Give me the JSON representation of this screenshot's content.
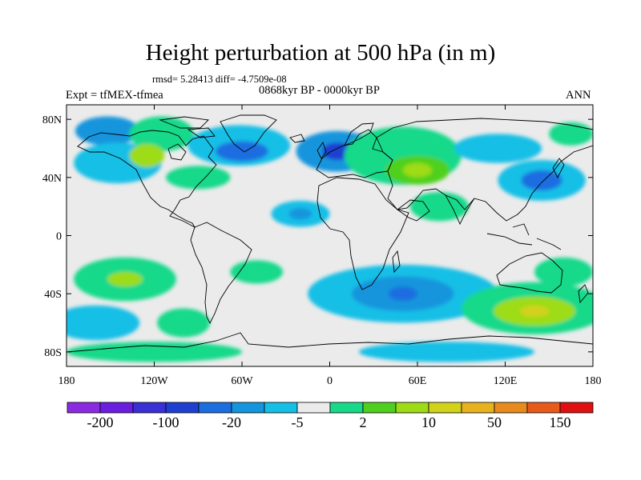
{
  "header": {
    "title": "Height perturbation at 500 hPa (in m)",
    "stats": "rmsd= 5.28413 diff= -4.7509e-08",
    "experiment": "Expt = tfMEX-tfmea",
    "period": "0868kyr BP - 0000kyr BP",
    "season": "ANN"
  },
  "axes": {
    "lat_labels": [
      {
        "lat": 80,
        "label": "80N"
      },
      {
        "lat": 40,
        "label": "40N"
      },
      {
        "lat": 0,
        "label": "0"
      },
      {
        "lat": -40,
        "label": "40S"
      },
      {
        "lat": -80,
        "label": "80S"
      }
    ],
    "lon_labels": [
      {
        "lon": -180,
        "label": "180"
      },
      {
        "lon": -120,
        "label": "120W"
      },
      {
        "lon": -60,
        "label": "60W"
      },
      {
        "lon": 0,
        "label": "0"
      },
      {
        "lon": 60,
        "label": "60E"
      },
      {
        "lon": 120,
        "label": "120E"
      },
      {
        "lon": 180,
        "label": "180"
      }
    ],
    "lon_range": [
      -180,
      180
    ],
    "lat_range": [
      -90,
      90
    ]
  },
  "colorbar": {
    "colors": [
      "#8a2be2",
      "#6a1fe0",
      "#3b2fd6",
      "#1e40d0",
      "#1a6ee0",
      "#1595dd",
      "#16bfe6",
      "#ebebeb",
      "#17d98a",
      "#4fd01e",
      "#9ddc14",
      "#d2d21a",
      "#e8b21e",
      "#e88a1e",
      "#e85a1a",
      "#e01010"
    ],
    "labels": [
      {
        "after_box": 1,
        "text": "-200"
      },
      {
        "after_box": 3,
        "text": "-100"
      },
      {
        "after_box": 5,
        "text": "-20"
      },
      {
        "after_box": 7,
        "text": "-5"
      },
      {
        "after_box": 9,
        "text": "2"
      },
      {
        "after_box": 11,
        "text": "10"
      },
      {
        "after_box": 13,
        "text": "50"
      },
      {
        "after_box": 15,
        "text": "150"
      }
    ]
  },
  "colors": {
    "neutral": "#ebebeb",
    "light_green": "#17d98a",
    "green": "#4fd01e",
    "yellow_green": "#9ddc14",
    "yellow": "#d2d21a",
    "cyan": "#16bfe6",
    "light_blue": "#1595dd",
    "blue": "#1a6ee0",
    "dark_blue": "#1e40d0"
  },
  "anomalies": [
    {
      "lon": -152,
      "lat": 72,
      "rlon": 22,
      "rlat": 10,
      "level": "light_blue"
    },
    {
      "lon": -145,
      "lat": 50,
      "rlon": 30,
      "rlat": 14,
      "level": "cyan"
    },
    {
      "lon": -115,
      "lat": 70,
      "rlon": 22,
      "rlat": 12,
      "level": "light_green"
    },
    {
      "lon": -125,
      "lat": 55,
      "rlon": 12,
      "rlat": 8,
      "level": "yellow_green"
    },
    {
      "lon": -90,
      "lat": 40,
      "rlon": 22,
      "rlat": 8,
      "level": "light_green"
    },
    {
      "lon": -62,
      "lat": 62,
      "rlon": 35,
      "rlat": 14,
      "level": "cyan"
    },
    {
      "lon": -60,
      "lat": 58,
      "rlon": 18,
      "rlat": 7,
      "level": "blue"
    },
    {
      "lon": -20,
      "lat": 15,
      "rlon": 20,
      "rlat": 9,
      "level": "cyan"
    },
    {
      "lon": -20,
      "lat": 15,
      "rlon": 8,
      "rlat": 4,
      "level": "light_blue"
    },
    {
      "lon": 5,
      "lat": 58,
      "rlon": 28,
      "rlat": 14,
      "level": "light_blue"
    },
    {
      "lon": 5,
      "lat": 58,
      "rlon": 10,
      "rlat": 6,
      "level": "dark_blue"
    },
    {
      "lon": 50,
      "lat": 55,
      "rlon": 40,
      "rlat": 20,
      "level": "light_green"
    },
    {
      "lon": 60,
      "lat": 45,
      "rlon": 22,
      "rlat": 10,
      "level": "green"
    },
    {
      "lon": 60,
      "lat": 45,
      "rlon": 10,
      "rlat": 5,
      "level": "yellow_green"
    },
    {
      "lon": 75,
      "lat": 20,
      "rlon": 20,
      "rlat": 10,
      "level": "light_green"
    },
    {
      "lon": 115,
      "lat": 60,
      "rlon": 30,
      "rlat": 10,
      "level": "cyan"
    },
    {
      "lon": 145,
      "lat": 38,
      "rlon": 30,
      "rlat": 14,
      "level": "cyan"
    },
    {
      "lon": 145,
      "lat": 38,
      "rlon": 14,
      "rlat": 7,
      "level": "blue"
    },
    {
      "lon": 165,
      "lat": 70,
      "rlon": 15,
      "rlat": 8,
      "level": "light_green"
    },
    {
      "lon": -140,
      "lat": -30,
      "rlon": 35,
      "rlat": 15,
      "level": "light_green"
    },
    {
      "lon": -140,
      "lat": -30,
      "rlon": 12,
      "rlat": 5,
      "level": "yellow_green"
    },
    {
      "lon": -160,
      "lat": -60,
      "rlon": 30,
      "rlat": 12,
      "level": "cyan"
    },
    {
      "lon": -100,
      "lat": -60,
      "rlon": 18,
      "rlat": 10,
      "level": "light_green"
    },
    {
      "lon": -50,
      "lat": -25,
      "rlon": 18,
      "rlat": 8,
      "level": "light_green"
    },
    {
      "lon": 50,
      "lat": -40,
      "rlon": 65,
      "rlat": 20,
      "level": "cyan"
    },
    {
      "lon": 50,
      "lat": -40,
      "rlon": 35,
      "rlat": 12,
      "level": "light_blue"
    },
    {
      "lon": 50,
      "lat": -40,
      "rlon": 10,
      "rlat": 5,
      "level": "blue"
    },
    {
      "lon": 140,
      "lat": -50,
      "rlon": 50,
      "rlat": 18,
      "level": "light_green"
    },
    {
      "lon": 140,
      "lat": -52,
      "rlon": 28,
      "rlat": 10,
      "level": "yellow_green"
    },
    {
      "lon": 140,
      "lat": -52,
      "rlon": 10,
      "rlat": 4,
      "level": "yellow"
    },
    {
      "lon": 160,
      "lat": -25,
      "rlon": 20,
      "rlat": 10,
      "level": "light_green"
    },
    {
      "lon": -120,
      "lat": -80,
      "rlon": 60,
      "rlat": 7,
      "level": "light_green"
    },
    {
      "lon": 80,
      "lat": -80,
      "rlon": 60,
      "rlat": 7,
      "level": "cyan"
    }
  ]
}
